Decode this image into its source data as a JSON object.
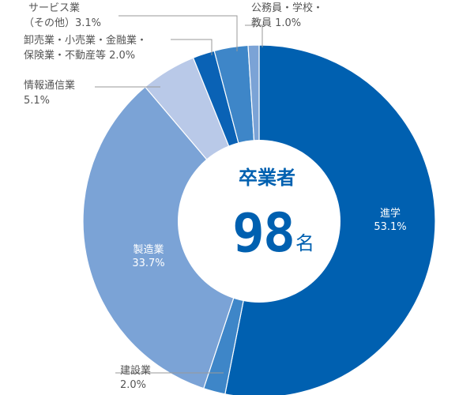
{
  "chart_data": {
    "type": "pie",
    "donut": true,
    "center": {
      "title": "卒業者",
      "value": "98",
      "unit": "名"
    },
    "slices": [
      {
        "label": "進学",
        "value_text": "53.1%",
        "value": 53.1,
        "color": "#0060b0"
      },
      {
        "label": "建設業",
        "value_text": "2.0%",
        "value": 2.0,
        "color": "#3e86c8"
      },
      {
        "label": "製造業",
        "value_text": "33.7%",
        "value": 33.7,
        "color": "#7ba3d6"
      },
      {
        "label": "情報通信業",
        "value_text": "5.1%",
        "value": 5.1,
        "color": "#b9c9e8"
      },
      {
        "label": "卸売業・小売業・金融業・保険業・不動産等",
        "value_text": "2.0%",
        "value": 2.0,
        "color": "#0a62b5"
      },
      {
        "label": "サービス業（その他）",
        "value_text": "3.1%",
        "value": 3.1,
        "color": "#3e86c8"
      },
      {
        "label": "公務員・学校・教員",
        "value_text": "1.0%",
        "value": 1.0,
        "color": "#7ba3d6"
      }
    ],
    "labels": {
      "shingaku": {
        "line1": "進学",
        "line2": "53.1%"
      },
      "kensetsu": {
        "line1": "建設業",
        "line2": "2.0%"
      },
      "seizou": {
        "line1": "製造業",
        "line2": "33.7%"
      },
      "jouhou": {
        "line1": "情報通信業",
        "line2": "5.1%"
      },
      "oroshi": {
        "line1": "卸売業・小売業・金融業・",
        "line2": "保険業・不動産等 2.0%"
      },
      "service": {
        "line1": "サービス業",
        "line2": "（その他）3.1%"
      },
      "koumuin": {
        "line1": "公務員・学校・",
        "line2": "教員 1.0%"
      }
    }
  }
}
